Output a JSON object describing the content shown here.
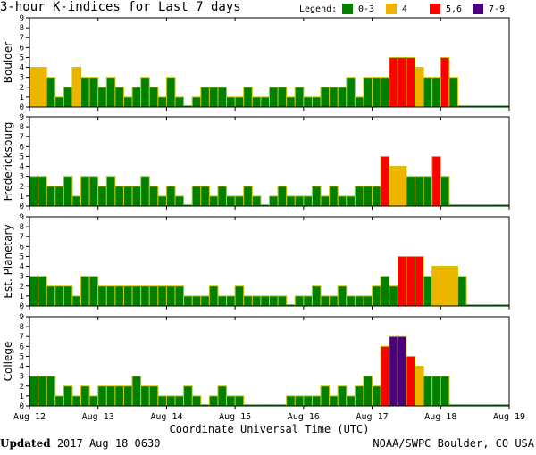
{
  "title": "3-hour K-indices for Last 7 days",
  "legend": {
    "label": "Legend:",
    "items": [
      {
        "label": "0-3",
        "color": "#008000"
      },
      {
        "label": "4",
        "color": "#f0b400"
      },
      {
        "label": "5,6",
        "color": "#ff0000"
      },
      {
        "label": "7-9",
        "color": "#4b0082"
      }
    ]
  },
  "footer": {
    "updated_label": "Updated",
    "updated_value": "2017 Aug 18 0630",
    "credit": "NOAA/SWPC Boulder, CO USA"
  },
  "chart_data": [
    {
      "type": "bar",
      "name": "Boulder",
      "ylim": [
        0,
        9
      ],
      "yticks": [
        "0",
        "1",
        "2",
        "3",
        "4",
        "5",
        "6",
        "7",
        "8",
        "9"
      ],
      "xticks": [
        "Aug 12",
        "Aug 13",
        "Aug 14",
        "Aug 15",
        "Aug 16",
        "Aug 17",
        "Aug 18",
        "Aug 19"
      ],
      "xlabel": "Coordinate Universal Time (UTC)",
      "values": [
        4,
        4,
        3,
        1,
        2,
        4,
        3,
        3,
        2,
        3,
        2,
        1,
        2,
        3,
        2,
        1,
        3,
        1,
        0,
        1,
        2,
        2,
        2,
        1,
        1,
        2,
        1,
        1,
        2,
        2,
        1,
        2,
        1,
        1,
        2,
        2,
        2,
        3,
        1,
        3,
        3,
        3,
        5,
        5,
        5,
        4,
        3,
        3,
        5,
        3,
        0,
        0,
        0,
        0,
        0,
        0
      ]
    },
    {
      "type": "bar",
      "name": "Fredericksburg",
      "ylim": [
        0,
        9
      ],
      "yticks": [
        "0",
        "1",
        "2",
        "3",
        "4",
        "5",
        "6",
        "7",
        "8",
        "9"
      ],
      "xticks": [
        "Aug 12",
        "Aug 13",
        "Aug 14",
        "Aug 15",
        "Aug 16",
        "Aug 17",
        "Aug 18",
        "Aug 19"
      ],
      "xlabel": "Coordinate Universal Time (UTC)",
      "values": [
        3,
        3,
        2,
        2,
        3,
        1,
        3,
        3,
        2,
        3,
        2,
        2,
        2,
        3,
        2,
        1,
        2,
        1,
        0,
        2,
        2,
        1,
        2,
        1,
        1,
        2,
        1,
        0,
        1,
        2,
        1,
        1,
        1,
        2,
        1,
        2,
        1,
        1,
        2,
        2,
        2,
        5,
        4,
        4,
        3,
        3,
        3,
        5,
        3,
        0,
        0,
        0,
        0,
        0,
        0,
        0
      ]
    },
    {
      "type": "bar",
      "name": "Est. Planetary",
      "ylim": [
        0,
        9
      ],
      "yticks": [
        "0",
        "1",
        "2",
        "3",
        "4",
        "5",
        "6",
        "7",
        "8",
        "9"
      ],
      "xticks": [
        "Aug 12",
        "Aug 13",
        "Aug 14",
        "Aug 15",
        "Aug 16",
        "Aug 17",
        "Aug 18",
        "Aug 19"
      ],
      "xlabel": "Coordinate Universal Time (UTC)",
      "values": [
        3,
        3,
        2,
        2,
        2,
        1,
        3,
        3,
        2,
        2,
        2,
        2,
        2,
        2,
        2,
        2,
        2,
        2,
        1,
        1,
        1,
        2,
        1,
        1,
        2,
        1,
        1,
        1,
        1,
        1,
        0,
        1,
        1,
        2,
        1,
        1,
        2,
        1,
        1,
        1,
        2,
        3,
        2,
        5,
        5,
        5,
        3,
        4,
        4,
        4,
        3,
        0,
        0,
        0,
        0,
        0
      ]
    },
    {
      "type": "bar",
      "name": "College",
      "ylim": [
        0,
        9
      ],
      "yticks": [
        "0",
        "1",
        "2",
        "3",
        "4",
        "5",
        "6",
        "7",
        "8",
        "9"
      ],
      "xticks": [
        "Aug 12",
        "Aug 13",
        "Aug 14",
        "Aug 15",
        "Aug 16",
        "Aug 17",
        "Aug 18",
        "Aug 19"
      ],
      "xlabel": "Coordinate Universal Time (UTC)",
      "values": [
        3,
        3,
        3,
        1,
        2,
        1,
        2,
        1,
        2,
        2,
        2,
        2,
        3,
        2,
        2,
        1,
        1,
        1,
        2,
        1,
        0,
        1,
        2,
        1,
        1,
        0,
        0,
        0,
        0,
        0,
        1,
        1,
        1,
        1,
        2,
        1,
        2,
        1,
        2,
        3,
        2,
        6,
        7,
        7,
        5,
        4,
        3,
        3,
        3,
        0,
        0,
        0,
        0,
        0,
        0,
        0
      ]
    }
  ]
}
